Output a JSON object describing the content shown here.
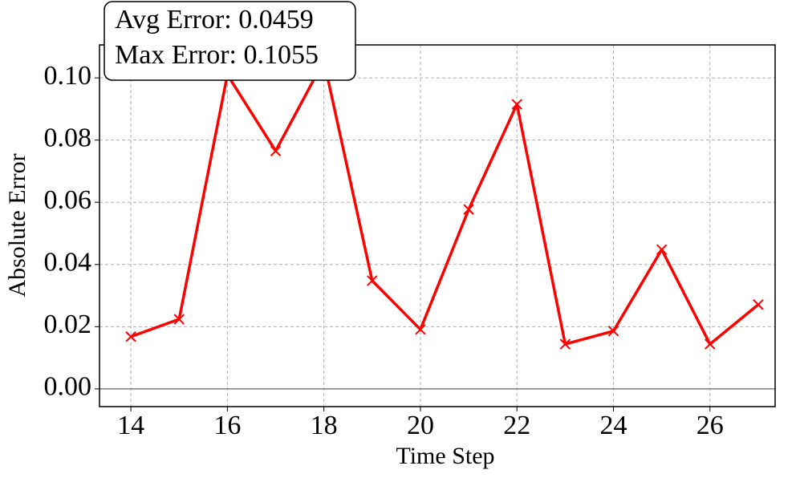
{
  "chart_data": {
    "type": "line",
    "xlabel": "Time Step",
    "ylabel": "Absolute Error",
    "annotations": [
      "Avg Error: 0.0459",
      "Max Error: 0.1055"
    ],
    "x": [
      14,
      15,
      16,
      17,
      18,
      19,
      20,
      21,
      22,
      23,
      24,
      25,
      26,
      27
    ],
    "series": [
      {
        "color": "#ff0000",
        "values": [
          0.0168,
          0.0224,
          0.101,
          0.0765,
          0.1055,
          0.0348,
          0.0191,
          0.0577,
          0.0915,
          0.0144,
          0.0186,
          0.0448,
          0.0144,
          0.0271
        ]
      }
    ],
    "xlim": [
      13.35,
      27.35
    ],
    "ylim": [
      -0.0057,
      0.1106
    ],
    "xticks": [
      14,
      16,
      18,
      20,
      22,
      24,
      26
    ],
    "yticks": [
      {
        "value": 0,
        "label": "0.00"
      },
      {
        "value": 0.02,
        "label": "0.02"
      },
      {
        "value": 0.04,
        "label": "0.04"
      },
      {
        "value": 0.06,
        "label": "0.06"
      },
      {
        "value": 0.08,
        "label": "0.08"
      },
      {
        "value": 0.1,
        "label": "0.10"
      }
    ],
    "grid": true
  }
}
